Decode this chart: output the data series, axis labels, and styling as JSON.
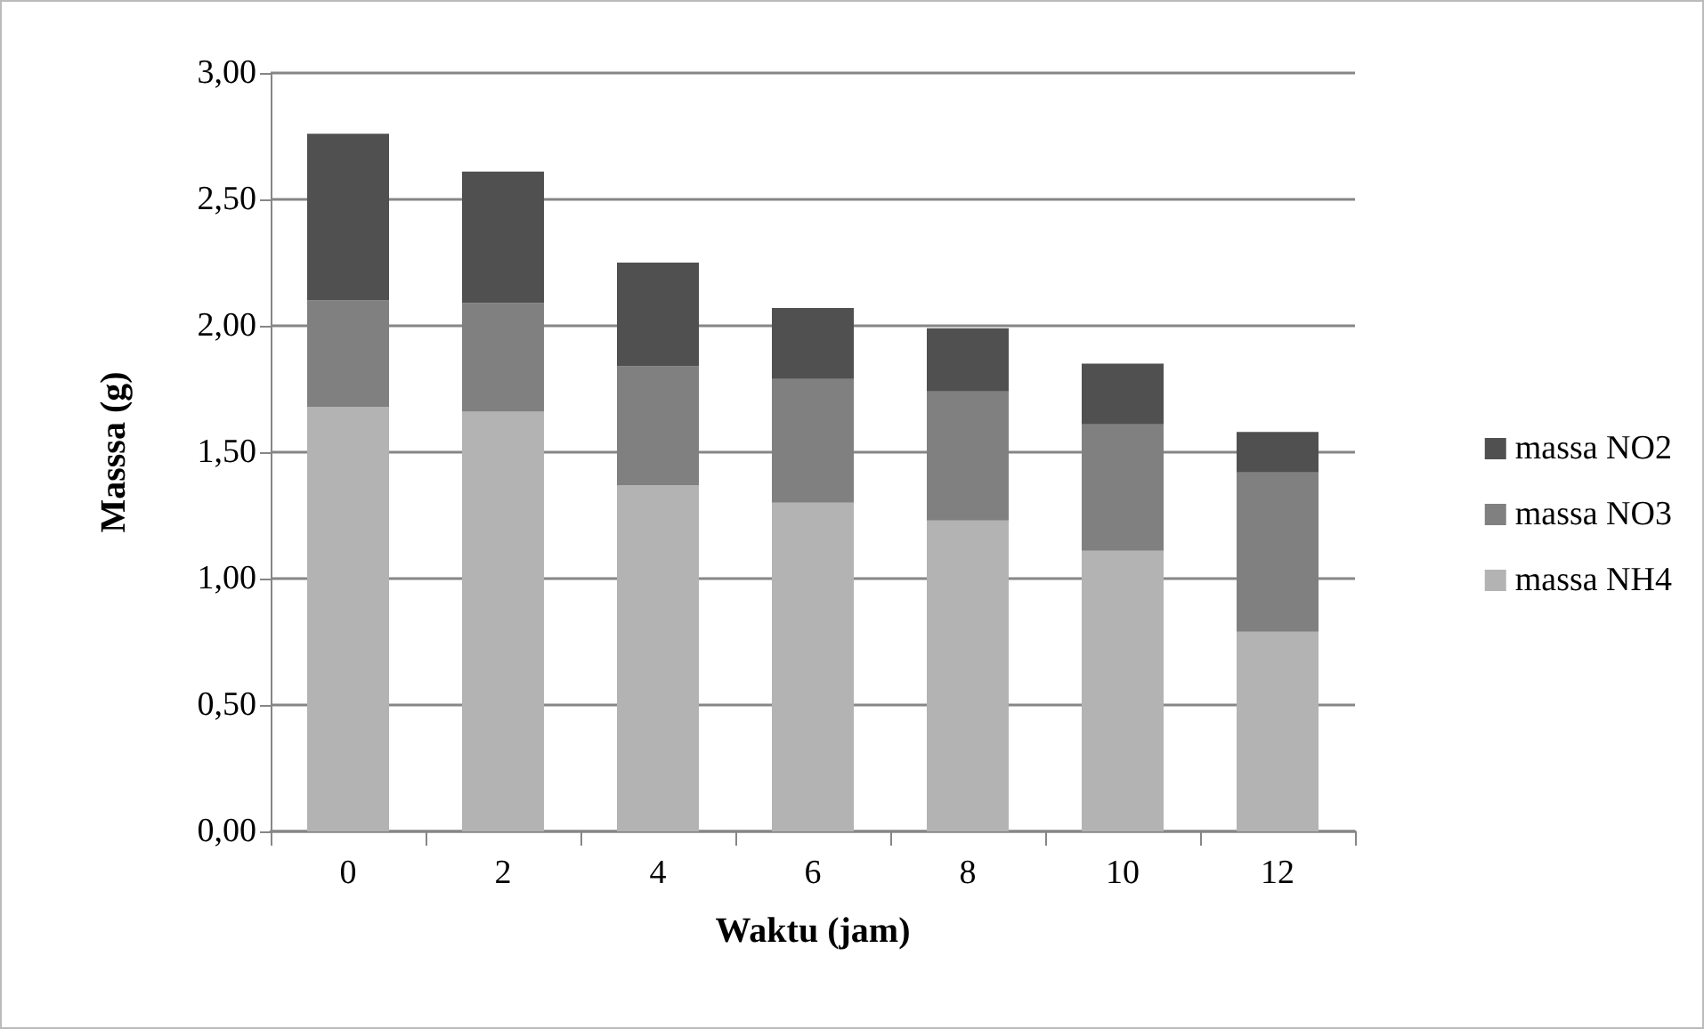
{
  "chart_data": {
    "type": "bar",
    "stacked": true,
    "xlabel": "Waktu (jam)",
    "ylabel": "Masssa (g)",
    "categories": [
      "0",
      "2",
      "4",
      "6",
      "8",
      "10",
      "12"
    ],
    "series": [
      {
        "name": "massa NH4",
        "color": "#b3b3b3",
        "values": [
          1.68,
          1.66,
          1.37,
          1.3,
          1.23,
          1.11,
          0.79
        ]
      },
      {
        "name": "massa NO3",
        "color": "#808080",
        "values": [
          0.42,
          0.43,
          0.47,
          0.49,
          0.51,
          0.5,
          0.63
        ]
      },
      {
        "name": "massa NO2",
        "color": "#505050",
        "values": [
          0.66,
          0.52,
          0.41,
          0.28,
          0.25,
          0.24,
          0.16
        ]
      }
    ],
    "ylim": [
      0,
      3
    ],
    "yticks": [
      {
        "value": 0,
        "label": "0,00"
      },
      {
        "value": 0.5,
        "label": "0,50"
      },
      {
        "value": 1,
        "label": "1,00"
      },
      {
        "value": 1.5,
        "label": "1,50"
      },
      {
        "value": 2,
        "label": "2,00"
      },
      {
        "value": 2.5,
        "label": "2,50"
      },
      {
        "value": 3,
        "label": "3,00"
      }
    ],
    "grid": "y",
    "legend": "right"
  }
}
